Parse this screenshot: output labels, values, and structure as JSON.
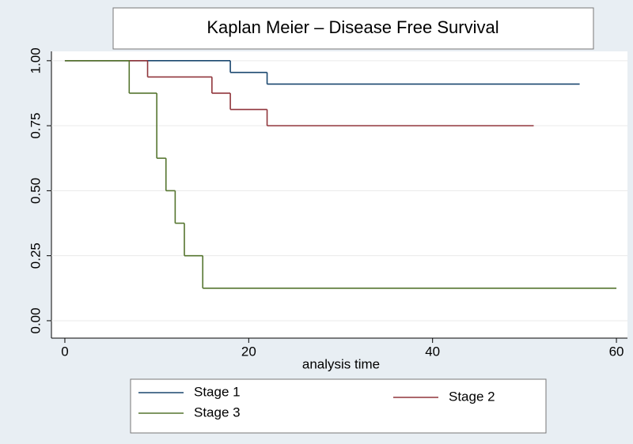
{
  "chart_data": {
    "type": "step",
    "title": "Kaplan Meier – Disease Free Survival",
    "x_label": "analysis time",
    "xlim": [
      -1.46,
      61.2
    ],
    "xticks": [
      0,
      20,
      40,
      60
    ],
    "ylim": [
      -0.067,
      1.036
    ],
    "yticks": [
      {
        "value": 0,
        "label": "0.00"
      },
      {
        "value": 0.25,
        "label": "0.25"
      },
      {
        "value": 0.5,
        "label": "0.50"
      },
      {
        "value": 0.75,
        "label": "0.75"
      },
      {
        "value": 1,
        "label": "1.00"
      }
    ],
    "grid": true,
    "series": [
      {
        "name": "Stage 1",
        "color": "#1a476f",
        "x": [
          0,
          18,
          22,
          56
        ],
        "values": [
          1,
          0.955,
          0.91,
          0.91
        ]
      },
      {
        "name": "Stage 2",
        "color": "#90353b",
        "x": [
          0,
          9,
          16,
          18,
          22,
          51
        ],
        "values": [
          1,
          0.9375,
          0.875,
          0.8125,
          0.75,
          0.75
        ]
      },
      {
        "name": "Stage 3",
        "color": "#55752f",
        "x": [
          0,
          7,
          10,
          11,
          12,
          13,
          15,
          60
        ],
        "values": [
          1,
          0.875,
          0.625,
          0.5,
          0.375,
          0.25,
          0.125,
          0.125
        ]
      }
    ]
  }
}
